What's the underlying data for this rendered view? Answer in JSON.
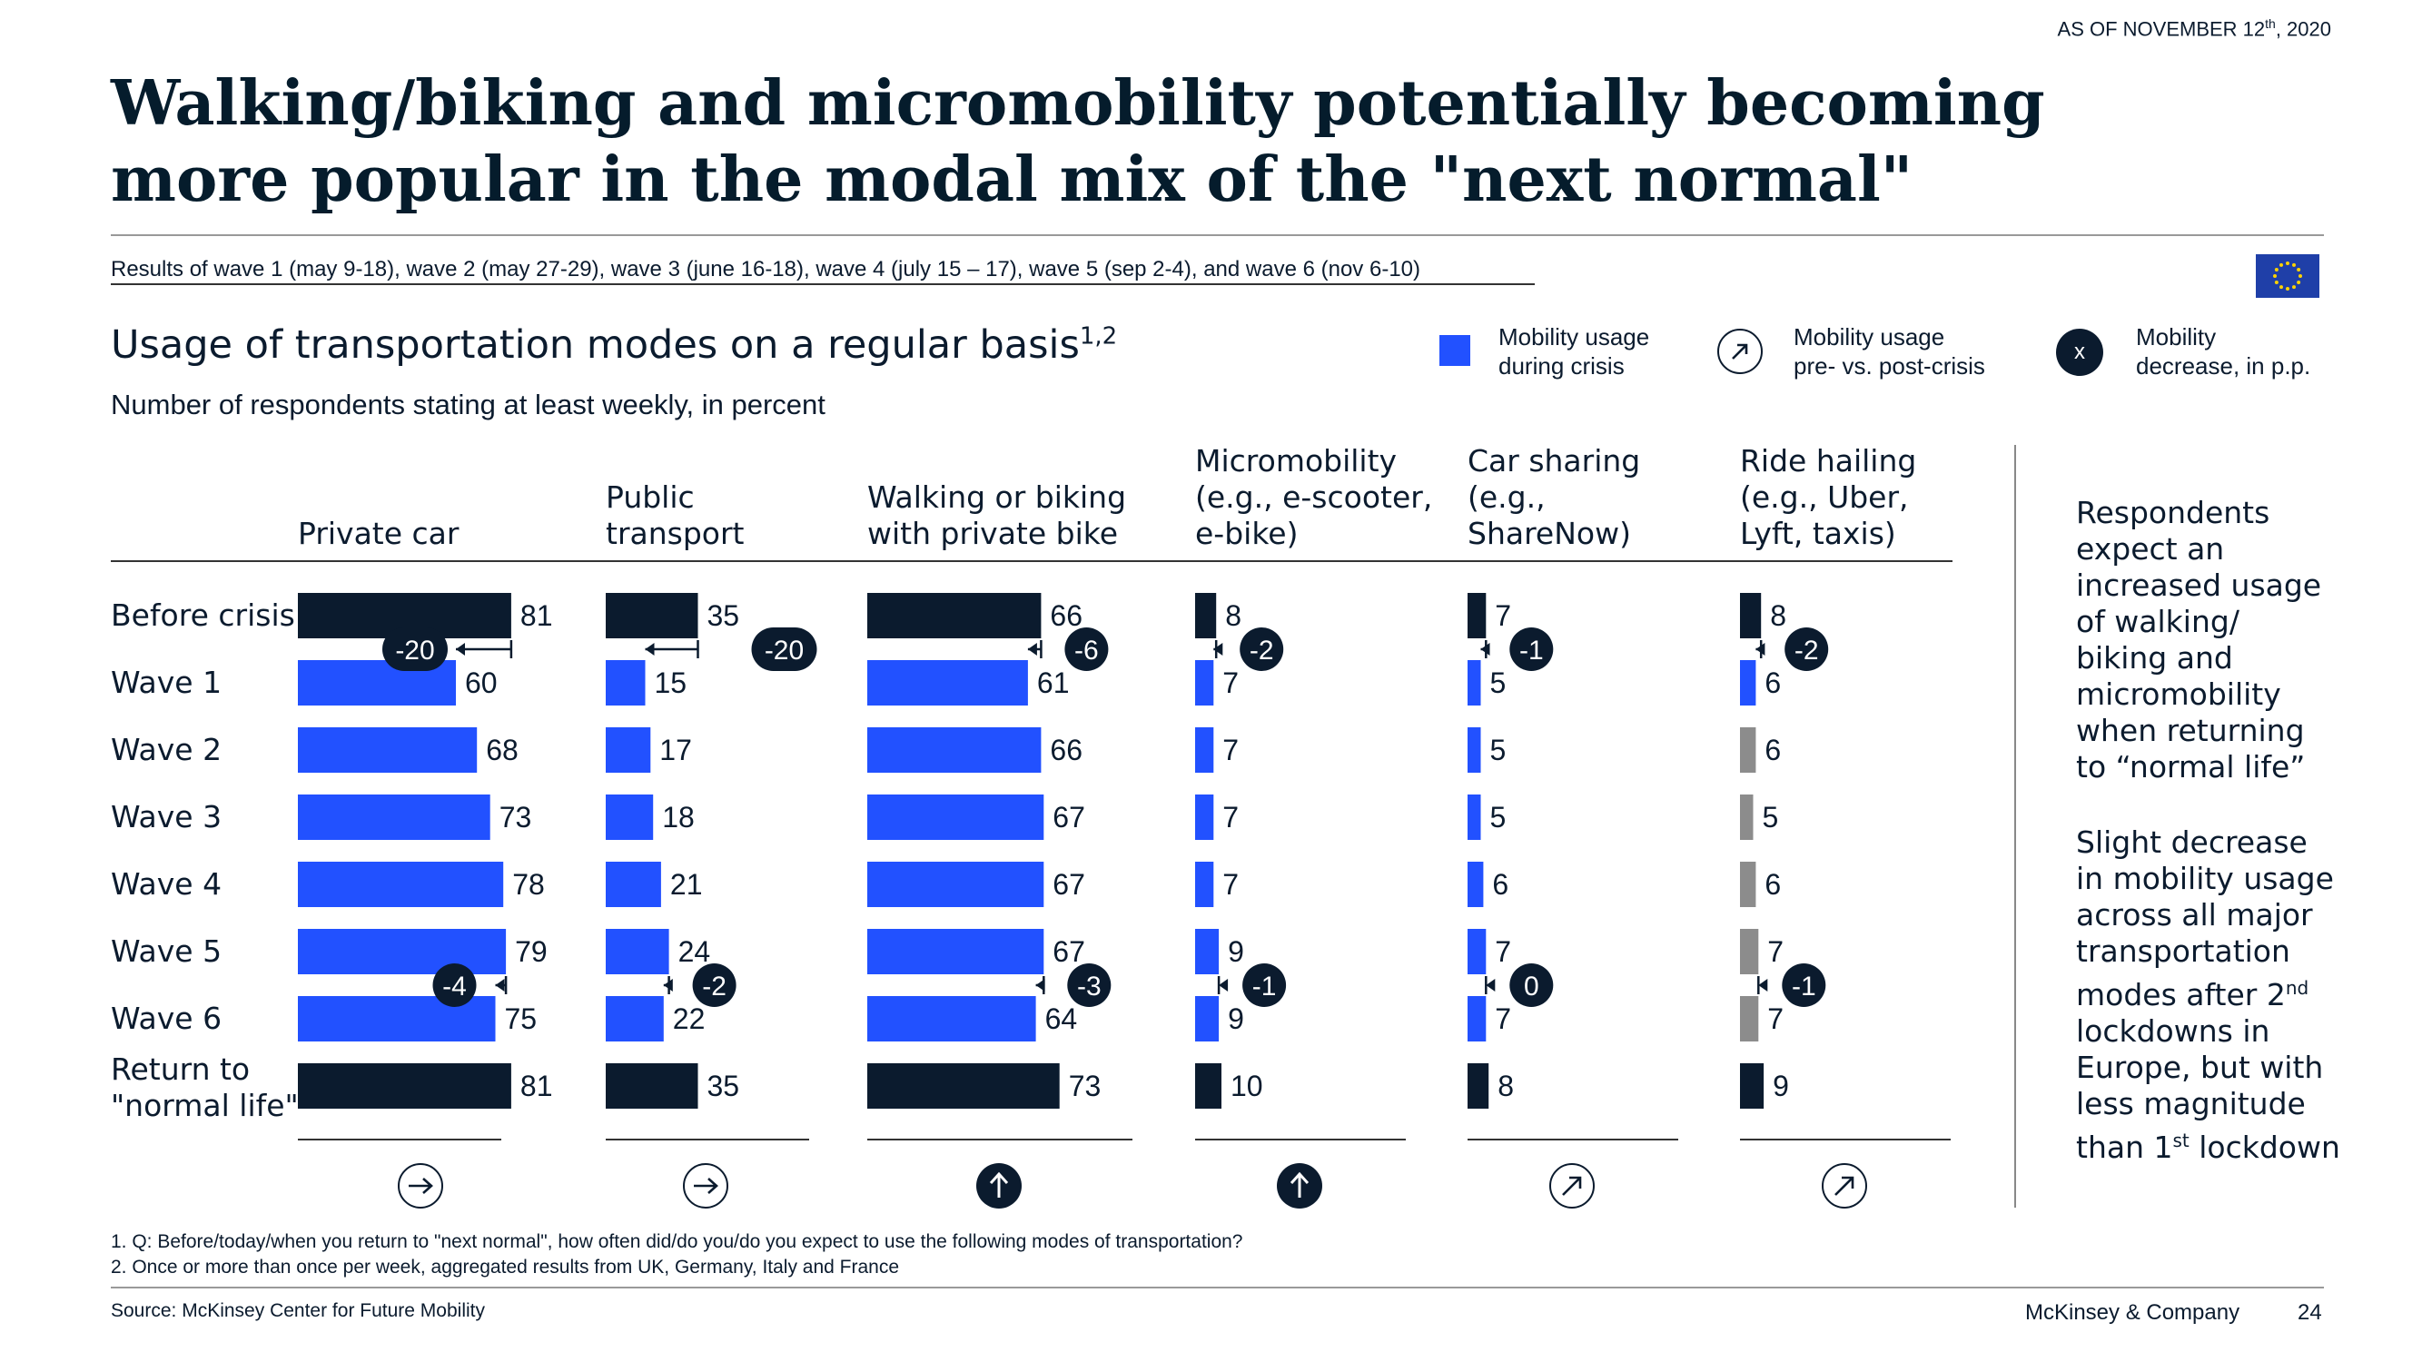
{
  "as_of": {
    "prefix": "AS OF NOVEMBER 12",
    "sup": "th",
    "suffix": ", 2020"
  },
  "title": "Walking/biking and micromobility potentially becoming more popular in the modal mix of the \"next normal\"",
  "subtitle": "Results of wave 1 (may 9-18), wave 2 (may 27-29), wave 3 (june 16-18), wave 4 (july 15 – 17), wave 5 (sep 2-4), and wave 6 (nov 6-10)",
  "section": {
    "title": "Usage of transportation modes on a regular basis",
    "title_sup": "1,2",
    "subtitle": "Number of respondents stating at least weekly, in percent"
  },
  "legend": {
    "usage": "Mobility usage\nduring crisis",
    "pre_post": "Mobility usage\npre- vs. post-crisis",
    "decrease_symbol": "x",
    "decrease": "Mobility\ndecrease, in p.p."
  },
  "colors": {
    "navy": "#0b1b2e",
    "blue": "#2251ff",
    "grey": "#8c8c8c",
    "arrow_blue": "#0b1b2e"
  },
  "chart_data": {
    "type": "bar",
    "orientation": "horizontal",
    "categories": [
      "Before crisis",
      "Wave 1",
      "Wave 2",
      "Wave 3",
      "Wave 4",
      "Wave 5",
      "Wave 6",
      "Return to \"normal life\""
    ],
    "series": [
      {
        "name": "Private car",
        "values": [
          81,
          60,
          68,
          73,
          78,
          79,
          75,
          81
        ],
        "colors": [
          "navy",
          "blue",
          "blue",
          "blue",
          "blue",
          "blue",
          "blue",
          "navy"
        ],
        "decrease_wave1": "-20",
        "decrease_wave6": "-4",
        "trend_icon": "arrow-right"
      },
      {
        "name": "Public transport",
        "values": [
          35,
          15,
          17,
          18,
          21,
          24,
          22,
          35
        ],
        "colors": [
          "navy",
          "blue",
          "blue",
          "blue",
          "blue",
          "blue",
          "blue",
          "navy"
        ],
        "decrease_wave1": "-20",
        "decrease_wave6": "-2",
        "trend_icon": "arrow-right"
      },
      {
        "name": "Walking or biking with private bike",
        "values": [
          66,
          61,
          66,
          67,
          67,
          67,
          64,
          73
        ],
        "colors": [
          "navy",
          "blue",
          "blue",
          "blue",
          "blue",
          "blue",
          "blue",
          "navy"
        ],
        "decrease_wave1": "-6",
        "decrease_wave6": "-3",
        "trend_icon": "arrow-up"
      },
      {
        "name": "Micromobility (e.g., e-scooter, e-bike)",
        "values": [
          8,
          7,
          7,
          7,
          7,
          9,
          9,
          10
        ],
        "colors": [
          "navy",
          "blue",
          "blue",
          "blue",
          "blue",
          "blue",
          "blue",
          "navy"
        ],
        "decrease_wave1": "-2",
        "decrease_wave6": "-1",
        "trend_icon": "arrow-up"
      },
      {
        "name": "Car sharing (e.g., ShareNow)",
        "values": [
          7,
          5,
          5,
          5,
          6,
          7,
          7,
          8
        ],
        "colors": [
          "navy",
          "blue",
          "blue",
          "blue",
          "blue",
          "blue",
          "blue",
          "navy"
        ],
        "decrease_wave1": "-1",
        "decrease_wave6": "0",
        "trend_icon": "arrow-diag"
      },
      {
        "name": "Ride hailing (e.g., Uber, Lyft, taxis)",
        "values": [
          8,
          6,
          6,
          5,
          6,
          7,
          7,
          9
        ],
        "colors": [
          "navy",
          "blue",
          "grey",
          "grey",
          "grey",
          "grey",
          "grey",
          "navy"
        ],
        "decrease_wave1": "-2",
        "decrease_wave6": "-1",
        "trend_icon": "arrow-diag"
      }
    ],
    "column_headers": [
      [
        "Private car"
      ],
      [
        "Public",
        "transport"
      ],
      [
        "Walking or biking",
        "with private bike"
      ],
      [
        "Micromobility",
        "(e.g., e-scooter,",
        "e-bike)"
      ],
      [
        "Car sharing",
        "(e.g.,",
        "ShareNow)"
      ],
      [
        "Ride hailing",
        "(e.g., Uber,",
        "Lyft, taxis)"
      ]
    ],
    "row_labels": [
      "Before crisis",
      "Wave 1",
      "Wave 2",
      "Wave 3",
      "Wave 4",
      "Wave 5",
      "Wave 6",
      "Return to",
      "\"normal life\""
    ]
  },
  "side_text": {
    "p1": [
      "Respondents",
      "expect an",
      "increased usage",
      "of walking/",
      "biking and",
      "micromobility",
      "when returning",
      "to “normal life”"
    ],
    "p2_lines": [
      "Slight decrease",
      "in mobility usage",
      "across all major",
      "transportation"
    ],
    "p2_line5": {
      "text": "modes after 2",
      "sup": "nd"
    },
    "p2_lines_b": [
      "lockdowns in",
      "Europe, but with",
      "less magnitude"
    ],
    "p2_last": {
      "text": "than 1",
      "sup": "st",
      "suffix": "lockdown"
    }
  },
  "footnotes": [
    "1. Q: Before/today/when you return to \"next normal\", how often did/do you/do you expect to use the following modes of transportation?",
    "2. Once or more than once per week, aggregated results from UK, Germany, Italy and France"
  ],
  "source": "Source: McKinsey Center for Future Mobility",
  "brand": "McKinsey & Company",
  "page_number": "24"
}
